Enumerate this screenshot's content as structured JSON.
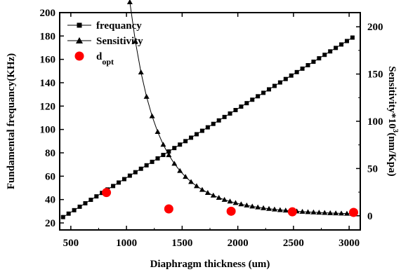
{
  "chart_data": {
    "type": "line",
    "xlabel": "Diaphragm thickness (um)",
    "ylabel_left": "Fundamental frequancy(KHz)",
    "ylabel_right": {
      "prefix": "Sensitivity*10",
      "sup": "3",
      "suffix": "(nm/Kpa)"
    },
    "xlim": [
      400,
      3100
    ],
    "ylim_left": [
      14,
      200
    ],
    "ylim_right": [
      -15,
      215
    ],
    "x_ticks": [
      500,
      1000,
      1500,
      2000,
      2500,
      3000
    ],
    "y_left_ticks": [
      20,
      40,
      60,
      80,
      100,
      120,
      140,
      160,
      180,
      200
    ],
    "y_right_ticks": [
      0,
      50,
      100,
      150,
      200
    ],
    "legend": [
      {
        "label": "frequancy",
        "marker": "square"
      },
      {
        "label": "Sensitivity",
        "marker": "triangle"
      },
      {
        "label": "d",
        "sub": "opt",
        "marker": "circle"
      }
    ],
    "series": [
      {
        "name": "frequancy",
        "axis": "left",
        "marker": "square",
        "x_start": 430,
        "x_end": 3070,
        "x_step": 50,
        "y_start": 25,
        "y_end": 181
      },
      {
        "name": "Sensitivity",
        "axis": "right",
        "marker": "triangle",
        "model": "y = 2.04e15 / x^4.3 (approx.)",
        "x_start": 430,
        "x_end": 3070,
        "x_step": 50
      },
      {
        "name": "dopt",
        "axis": "left",
        "marker": "circle",
        "points": [
          {
            "x": 820,
            "y": 46
          },
          {
            "x": 1380,
            "y": 32
          },
          {
            "x": 1940,
            "y": 30
          },
          {
            "x": 2490,
            "y": 29.5
          },
          {
            "x": 3040,
            "y": 29
          }
        ]
      }
    ],
    "colors": {
      "line": "#000000",
      "dopt": "#ff0000"
    }
  }
}
